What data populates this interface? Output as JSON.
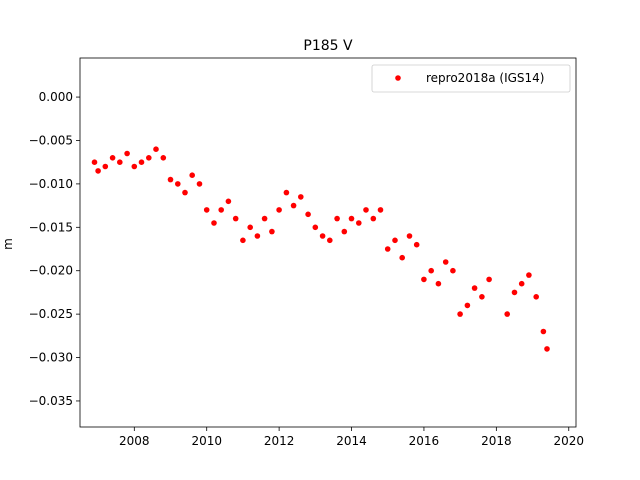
{
  "chart_data": {
    "type": "scatter",
    "title": "P185 V",
    "xlabel": "",
    "ylabel": "m",
    "xlim": [
      2006.5,
      2020.2
    ],
    "ylim": [
      -0.038,
      0.0045
    ],
    "xticks": [
      2008,
      2010,
      2012,
      2014,
      2016,
      2018,
      2020
    ],
    "xtick_labels": [
      "2008",
      "2010",
      "2012",
      "2014",
      "2016",
      "2018",
      "2020"
    ],
    "yticks": [
      0.0,
      -0.005,
      -0.01,
      -0.015,
      -0.02,
      -0.025,
      -0.03,
      -0.035
    ],
    "ytick_labels": [
      "0.000",
      "−0.005",
      "−0.010",
      "−0.015",
      "−0.020",
      "−0.025",
      "−0.030",
      "−0.035"
    ],
    "grid": false,
    "legend": {
      "placement": "top-right",
      "entries": [
        "repro2018a (IGS14)"
      ]
    },
    "series": [
      {
        "name": "repro2018a (IGS14)",
        "color": "#ff0000",
        "marker": "circle",
        "x": [
          2006.9,
          2007.0,
          2007.2,
          2007.4,
          2007.6,
          2007.8,
          2008.0,
          2008.2,
          2008.4,
          2008.6,
          2008.8,
          2009.0,
          2009.2,
          2009.4,
          2009.6,
          2009.8,
          2010.0,
          2010.2,
          2010.4,
          2010.6,
          2010.8,
          2011.0,
          2011.2,
          2011.4,
          2011.6,
          2011.8,
          2012.0,
          2012.2,
          2012.4,
          2012.6,
          2012.8,
          2013.0,
          2013.2,
          2013.4,
          2013.6,
          2013.8,
          2014.0,
          2014.2,
          2014.4,
          2014.6,
          2014.8,
          2015.0,
          2015.2,
          2015.4,
          2015.6,
          2015.8,
          2016.0,
          2016.2,
          2016.4,
          2016.6,
          2016.8,
          2017.0,
          2017.2,
          2017.4,
          2017.6,
          2017.8,
          2018.3,
          2018.5,
          2018.7,
          2018.9,
          2019.1,
          2019.3,
          2019.4
        ],
        "y": [
          -0.0075,
          -0.0085,
          -0.008,
          -0.007,
          -0.0075,
          -0.0065,
          -0.008,
          -0.0075,
          -0.007,
          -0.006,
          -0.007,
          -0.0095,
          -0.01,
          -0.011,
          -0.009,
          -0.01,
          -0.013,
          -0.0145,
          -0.013,
          -0.012,
          -0.014,
          -0.0165,
          -0.015,
          -0.016,
          -0.014,
          -0.0155,
          -0.013,
          -0.011,
          -0.0125,
          -0.0115,
          -0.0135,
          -0.015,
          -0.016,
          -0.0165,
          -0.014,
          -0.0155,
          -0.014,
          -0.0145,
          -0.013,
          -0.014,
          -0.013,
          -0.0175,
          -0.0165,
          -0.0185,
          -0.016,
          -0.017,
          -0.021,
          -0.02,
          -0.0215,
          -0.019,
          -0.02,
          -0.025,
          -0.024,
          -0.022,
          -0.023,
          -0.021,
          -0.025,
          -0.0225,
          -0.0215,
          -0.0205,
          -0.023,
          -0.027,
          -0.029
        ]
      }
    ]
  }
}
